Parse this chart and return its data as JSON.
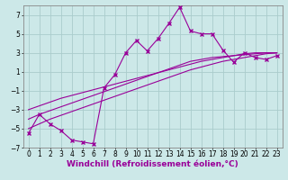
{
  "xlabel": "Windchill (Refroidissement éolien,°C)",
  "x_data": [
    0,
    1,
    2,
    3,
    4,
    5,
    6,
    7,
    8,
    9,
    10,
    11,
    12,
    13,
    14,
    15,
    16,
    17,
    18,
    19,
    20,
    21,
    22,
    23
  ],
  "y_main": [
    -5.5,
    -3.5,
    -4.5,
    -5.2,
    -6.2,
    -6.4,
    -6.6,
    -0.7,
    0.7,
    3.0,
    4.3,
    3.2,
    4.5,
    6.1,
    7.8,
    5.3,
    5.0,
    5.0,
    3.3,
    2.0,
    3.0,
    2.5,
    2.3,
    2.7
  ],
  "y_line1": [
    -4.0,
    -3.5,
    -3.1,
    -2.7,
    -2.3,
    -1.9,
    -1.5,
    -1.1,
    -0.7,
    -0.3,
    0.1,
    0.5,
    0.9,
    1.3,
    1.7,
    2.1,
    2.3,
    2.5,
    2.6,
    2.7,
    2.8,
    2.9,
    3.0,
    3.0
  ],
  "y_line2": [
    -3.0,
    -2.6,
    -2.2,
    -1.8,
    -1.5,
    -1.2,
    -0.9,
    -0.6,
    -0.3,
    0.0,
    0.3,
    0.6,
    0.9,
    1.2,
    1.5,
    1.8,
    2.1,
    2.3,
    2.5,
    2.7,
    2.9,
    3.0,
    3.0,
    3.0
  ],
  "y_line3": [
    -5.0,
    -4.5,
    -4.0,
    -3.6,
    -3.2,
    -2.8,
    -2.4,
    -2.0,
    -1.6,
    -1.2,
    -0.8,
    -0.4,
    0.0,
    0.4,
    0.8,
    1.2,
    1.5,
    1.8,
    2.1,
    2.3,
    2.5,
    2.7,
    2.9,
    3.0
  ],
  "line_color": "#990099",
  "bg_color": "#cce8e8",
  "grid_color": "#aacccc",
  "ylim": [
    -7,
    8
  ],
  "yticks": [
    -7,
    -5,
    -3,
    -1,
    1,
    3,
    5,
    7
  ],
  "xlim": [
    -0.5,
    23.5
  ],
  "xticks": [
    0,
    1,
    2,
    3,
    4,
    5,
    6,
    7,
    8,
    9,
    10,
    11,
    12,
    13,
    14,
    15,
    16,
    17,
    18,
    19,
    20,
    21,
    22,
    23
  ],
  "marker": "x",
  "markersize": 3,
  "linewidth": 0.8,
  "xlabel_fontsize": 6.5,
  "tick_fontsize": 5.5
}
